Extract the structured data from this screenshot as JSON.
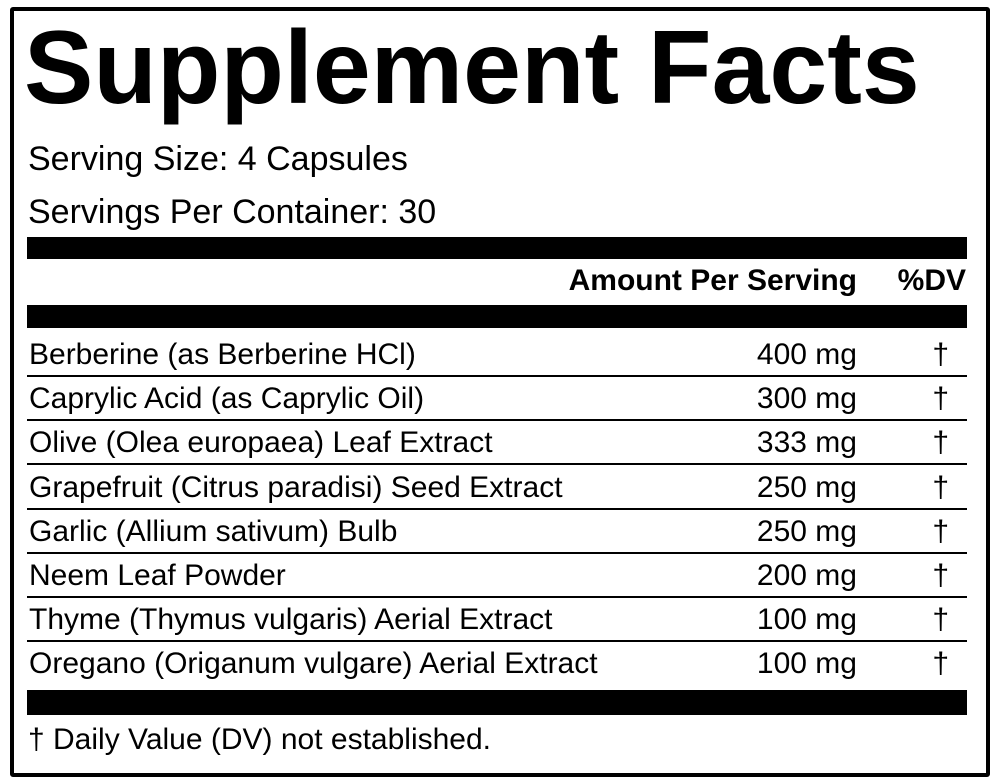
{
  "title": "Supplement Facts",
  "serving_size": "Serving Size: 4 Capsules",
  "servings_per_container": "Servings Per Container: 30",
  "header": {
    "amount": "Amount Per Serving",
    "dv": "%DV"
  },
  "ingredients": [
    {
      "name": "Berberine (as Berberine HCl)",
      "amount": "400 mg",
      "dv": "†"
    },
    {
      "name": "Caprylic Acid (as Caprylic Oil)",
      "amount": "300 mg",
      "dv": "†"
    },
    {
      "name": "Olive (Olea europaea) Leaf Extract",
      "amount": "333 mg",
      "dv": "†"
    },
    {
      "name": "Grapefruit (Citrus paradisi) Seed Extract",
      "amount": "250 mg",
      "dv": "†"
    },
    {
      "name": "Garlic (Allium sativum) Bulb",
      "amount": "250 mg",
      "dv": "†"
    },
    {
      "name": "Neem Leaf Powder",
      "amount": "200 mg",
      "dv": "†"
    },
    {
      "name": "Thyme (Thymus vulgaris) Aerial Extract",
      "amount": "100 mg",
      "dv": "†"
    },
    {
      "name": "Oregano (Origanum vulgare) Aerial Extract",
      "amount": "100 mg",
      "dv": "†"
    }
  ],
  "footnote": "† Daily Value (DV) not established."
}
